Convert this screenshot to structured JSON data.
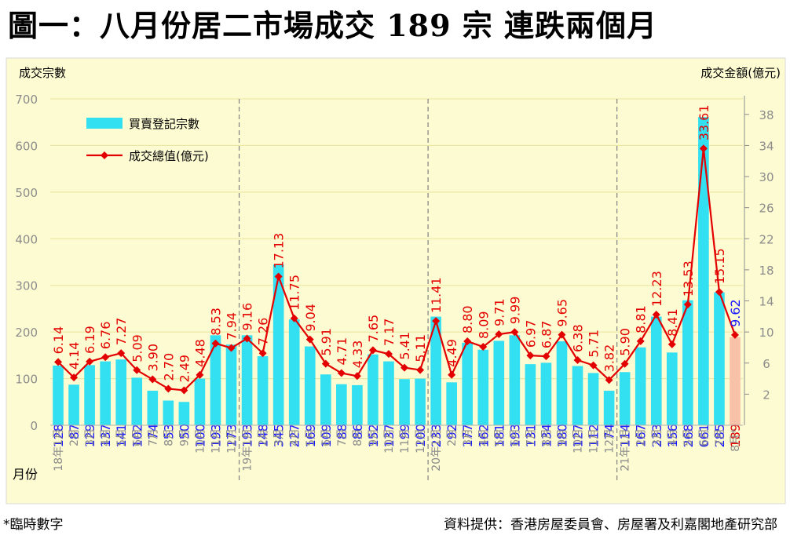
{
  "title": "圖一：八月份居二市場成交 189 宗  連跌兩個月",
  "footnote": "*臨時數字",
  "source": "資料提供：香港房屋委員會、房屋署及利嘉閣地產研究部",
  "colors": {
    "plot_bg": "#fdfbd2",
    "grid": "#e8e49c",
    "bar": "#33e0f2",
    "bar_provisional": "#f7c2a8",
    "line": "#e30000",
    "bar_label": "#1a1aff",
    "line_label": "#e30000",
    "line_label_provisional": "#1a1aff",
    "axis_text": "#8c8c8c",
    "divider": "#808080"
  },
  "chart_data": {
    "type": "bar",
    "title": "圖一：八月份居二市場成交 189 宗  連跌兩個月",
    "ylabel_left": "成交宗數",
    "ylabel_right": "成交金額(億元)",
    "xlabel": "月份",
    "ylim_left": [
      0,
      700
    ],
    "yticks_left": [
      "0",
      "100",
      "200",
      "300",
      "400",
      "500",
      "600",
      "700"
    ],
    "ylim_right": [
      -2,
      40
    ],
    "yticks_right": [
      "2",
      "6",
      "10",
      "14",
      "18",
      "22",
      "26",
      "30",
      "34",
      "38"
    ],
    "legend": [
      "買賣登記宗數",
      "成交總值(億元)"
    ],
    "categories": [
      "18年1月",
      "2月",
      "3月",
      "4月",
      "5月",
      "6月",
      "7月",
      "8月",
      "9月",
      "10月",
      "11月",
      "12月",
      "19年1月",
      "2月",
      "3月",
      "4月",
      "5月",
      "6月",
      "7月",
      "8月",
      "9月",
      "10月",
      "11月",
      "12月",
      "20年1月",
      "2月",
      "3月",
      "4月",
      "5月",
      "6月",
      "7月",
      "8月",
      "9月",
      "10月",
      "11月",
      "12月",
      "21年1月",
      "2月",
      "3月",
      "4月",
      "5月",
      "6月",
      "7月",
      "8月*"
    ],
    "series": [
      {
        "name": "買賣登記宗數",
        "type": "bar",
        "axis": "left",
        "values": [
          128,
          87,
          129,
          137,
          141,
          102,
          74,
          53,
          50,
          100,
          193,
          173,
          193,
          148,
          345,
          227,
          169,
          109,
          88,
          86,
          152,
          137,
          99,
          100,
          233,
          92,
          177,
          162,
          181,
          193,
          131,
          134,
          180,
          127,
          112,
          74,
          114,
          167,
          233,
          156,
          268,
          661,
          285,
          189
        ]
      },
      {
        "name": "成交總值(億元)",
        "type": "line",
        "axis": "right",
        "values": [
          6.14,
          4.14,
          6.19,
          6.76,
          7.27,
          5.09,
          3.9,
          2.7,
          2.49,
          4.48,
          8.53,
          7.94,
          9.16,
          7.26,
          17.13,
          11.75,
          9.04,
          5.91,
          4.71,
          4.33,
          7.65,
          7.17,
          5.41,
          5.11,
          11.41,
          4.49,
          8.8,
          8.09,
          9.71,
          9.99,
          6.97,
          6.87,
          9.65,
          6.38,
          5.71,
          3.82,
          5.9,
          8.81,
          12.23,
          8.41,
          13.53,
          33.61,
          15.15,
          9.62
        ]
      }
    ],
    "bar_labels": [
      "128",
      "87",
      "129",
      "137",
      "141",
      "102",
      "74",
      "53",
      "50",
      "100",
      "193",
      "173",
      "193",
      "148",
      "345",
      "227",
      "169",
      "109",
      "88",
      "86",
      "152",
      "137",
      "99",
      "100",
      "233",
      "92",
      "177",
      "162",
      "181",
      "193",
      "131",
      "134",
      "180",
      "127",
      "112",
      "74",
      "114",
      "167",
      "233",
      "156",
      "268",
      "661",
      "285",
      "189"
    ],
    "line_labels": [
      "6.14",
      "4.14",
      "6.19",
      "6.76",
      "7.27",
      "5.09",
      "3.90",
      "2.70",
      "2.49",
      "4.48",
      "8.53",
      "7.94",
      "9.16",
      "7.26",
      "17.13",
      "11.75",
      "9.04",
      "5.91",
      "4.71",
      "4.33",
      "7.65",
      "7.17",
      "5.41",
      "5.11",
      "11.41",
      "4.49",
      "8.80",
      "8.09",
      "9.71",
      "9.99",
      "6.97",
      "6.87",
      "9.65",
      "6.38",
      "5.71",
      "3.82",
      "5.90",
      "8.81",
      "12.23",
      "8.41",
      "13.53",
      "33.61",
      "15.15",
      "9.62"
    ],
    "provisional_index": 43,
    "year_dividers_after": [
      11,
      23,
      35
    ],
    "legend_position": "top-left"
  }
}
